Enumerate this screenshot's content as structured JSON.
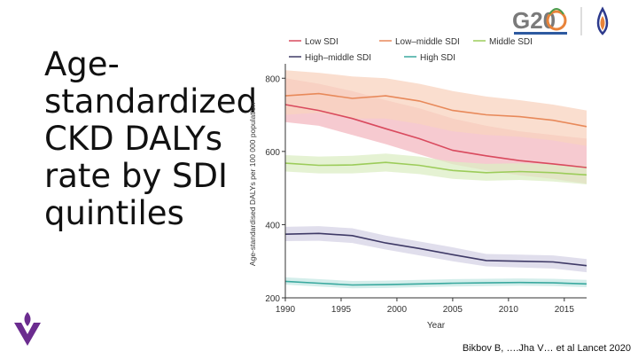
{
  "slide": {
    "title_lines": [
      "Age-",
      "standardized",
      "CKD DALYs",
      "rate by SDI",
      "quintiles"
    ],
    "citation": "Bikbov B, ….Jha V… et al Lancet 2020",
    "logo_text": "G20"
  },
  "chart_data": {
    "type": "line",
    "title": "",
    "xlabel": "Year",
    "ylabel": "Age-standardised DALYs per 100 000 population",
    "xlim": [
      1990,
      2017
    ],
    "ylim": [
      200,
      820
    ],
    "xticks": [
      1990,
      1995,
      2000,
      2005,
      2010,
      2015
    ],
    "yticks": [
      200,
      400,
      600,
      800
    ],
    "legend_position": "top",
    "x": [
      1990,
      1993,
      1996,
      1999,
      2002,
      2005,
      2008,
      2011,
      2014,
      2017
    ],
    "series": [
      {
        "name": "Low SDI",
        "color": "#d94a5e",
        "band": "#f3b8c0",
        "values": [
          728,
          712,
          690,
          662,
          635,
          603,
          588,
          575,
          566,
          556
        ],
        "lower": [
          680,
          670,
          645,
          620,
          592,
          565,
          548,
          535,
          525,
          512
        ],
        "upper": [
          800,
          785,
          765,
          740,
          718,
          690,
          670,
          655,
          645,
          635
        ]
      },
      {
        "name": "Low–middle SDI",
        "color": "#e8895a",
        "band": "#f8d3bf",
        "values": [
          752,
          758,
          745,
          752,
          738,
          712,
          700,
          695,
          685,
          668
        ],
        "lower": [
          700,
          706,
          690,
          690,
          675,
          655,
          645,
          640,
          630,
          615
        ],
        "upper": [
          822,
          815,
          805,
          800,
          785,
          765,
          750,
          740,
          728,
          712
        ]
      },
      {
        "name": "Middle SDI",
        "color": "#9ccc5a",
        "band": "#dceec4",
        "values": [
          568,
          562,
          563,
          570,
          562,
          548,
          542,
          545,
          542,
          536
        ],
        "lower": [
          545,
          540,
          540,
          545,
          538,
          525,
          520,
          522,
          518,
          510
        ],
        "upper": [
          590,
          586,
          588,
          594,
          586,
          572,
          566,
          568,
          565,
          560
        ]
      },
      {
        "name": "High–middle SDI",
        "color": "#3f3a67",
        "band": "#d5d3e5",
        "values": [
          374,
          376,
          370,
          350,
          335,
          318,
          302,
          300,
          298,
          288
        ],
        "lower": [
          355,
          356,
          350,
          332,
          316,
          300,
          286,
          283,
          280,
          270
        ],
        "upper": [
          394,
          396,
          390,
          370,
          354,
          338,
          320,
          318,
          316,
          306
        ]
      },
      {
        "name": "High SDI",
        "color": "#3aa99f",
        "band": "#c6e8e4",
        "values": [
          245,
          240,
          235,
          236,
          238,
          240,
          241,
          242,
          241,
          238
        ],
        "lower": [
          236,
          231,
          226,
          227,
          229,
          231,
          232,
          233,
          232,
          229
        ],
        "upper": [
          256,
          251,
          246,
          247,
          249,
          251,
          252,
          253,
          252,
          249
        ]
      }
    ]
  }
}
